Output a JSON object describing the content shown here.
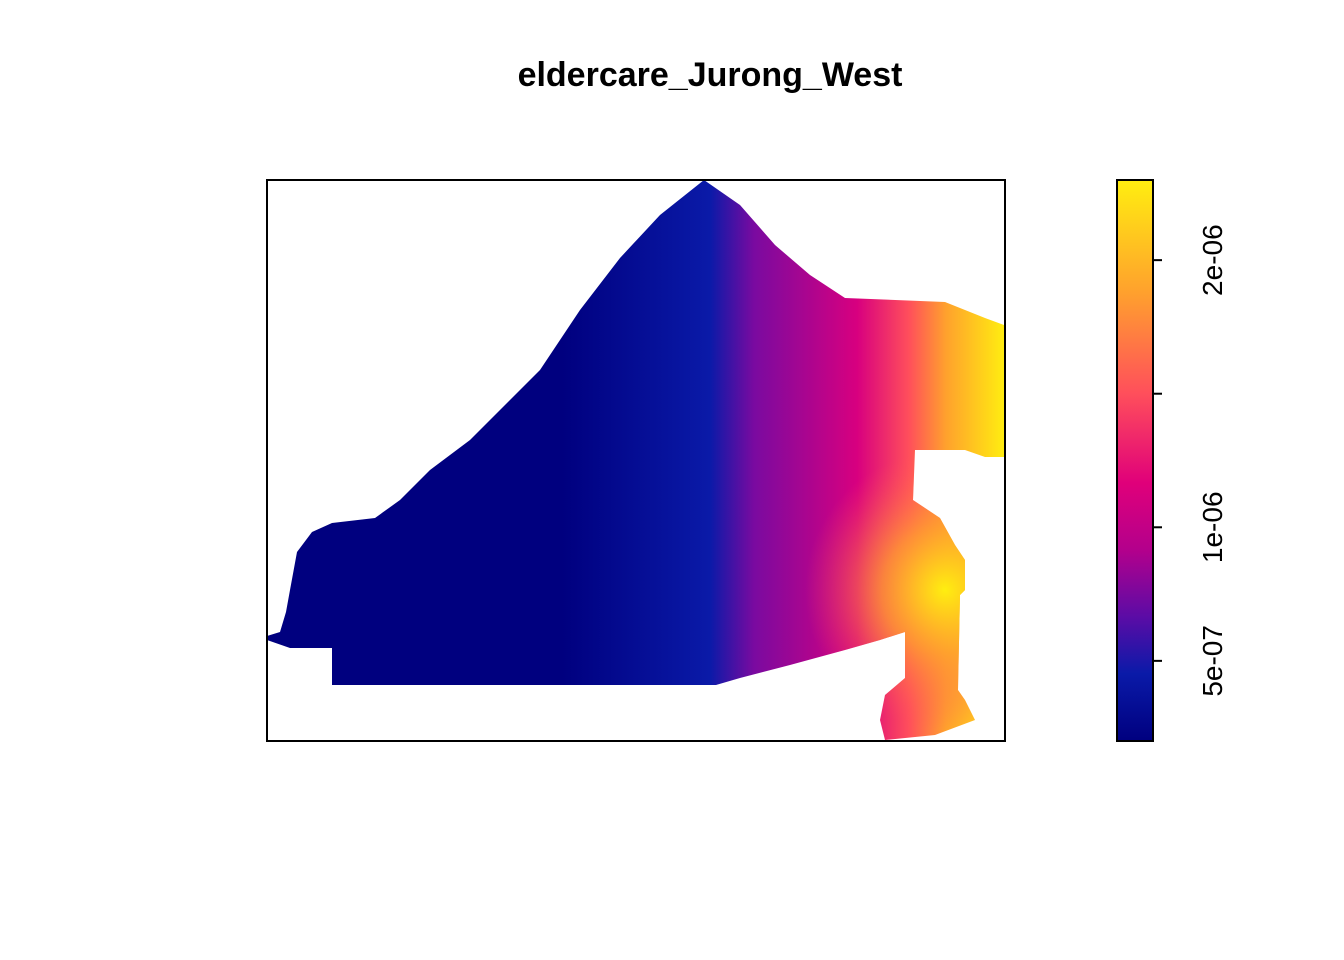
{
  "chart_data": {
    "type": "heatmap",
    "title": "eldercare_Jurong_West",
    "xlabel": "",
    "ylabel": "",
    "legend_position": "right",
    "value_range": [
      2e-07,
      2.3e-06
    ],
    "colorbar_ticks": [
      {
        "value": 5e-07,
        "label": "5e-07"
      },
      {
        "value": 1e-06,
        "label": "1e-06"
      },
      {
        "value": 1.5e-06,
        "label": ""
      },
      {
        "value": 2e-06,
        "label": "2e-06"
      }
    ],
    "palette": [
      "#00007f",
      "#0a1aa8",
      "#7a0aa0",
      "#d8007f",
      "#ff4f5b",
      "#ffa12d",
      "#ffee10"
    ],
    "grid": false,
    "axes_shown": false
  }
}
